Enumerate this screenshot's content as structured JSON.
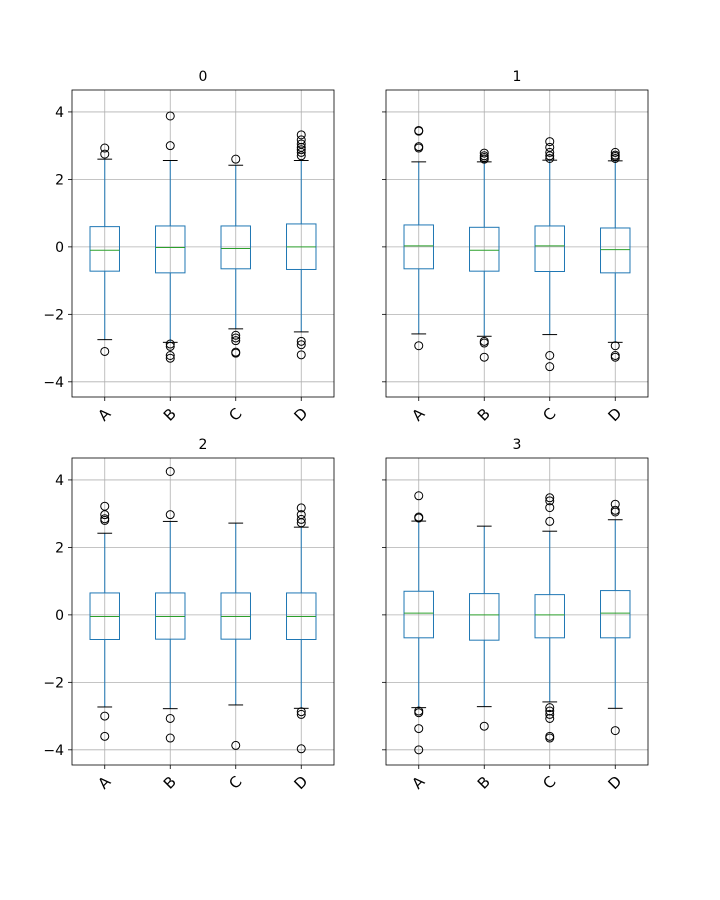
{
  "chart_data": [
    {
      "type": "box",
      "title": "0",
      "categories": [
        "A",
        "B",
        "C",
        "D"
      ],
      "ylim": [
        -4.45,
        4.65
      ],
      "yticks": [
        -4,
        -2,
        0,
        2,
        4
      ],
      "ytick_labels": [
        "−4",
        "−2",
        "0",
        "2",
        "4"
      ],
      "grid": true,
      "boxes": [
        {
          "whislo": -2.75,
          "q1": -0.72,
          "med": -0.1,
          "q3": 0.6,
          "whishi": 2.6,
          "fliers": [
            -3.1,
            2.75,
            2.93
          ]
        },
        {
          "whislo": -2.83,
          "q1": -0.77,
          "med": -0.02,
          "q3": 0.62,
          "whishi": 2.56,
          "fliers": [
            -2.88,
            -2.95,
            -3.22,
            -3.3,
            3.0,
            3.88
          ]
        },
        {
          "whislo": -2.43,
          "q1": -0.65,
          "med": -0.05,
          "q3": 0.62,
          "whishi": 2.42,
          "fliers": [
            -2.62,
            -2.7,
            -2.78,
            -3.12,
            -3.15,
            2.6
          ]
        },
        {
          "whislo": -2.52,
          "q1": -0.67,
          "med": 0.0,
          "q3": 0.68,
          "whishi": 2.56,
          "fliers": [
            -2.8,
            -2.9,
            -3.2,
            2.7,
            2.8,
            2.88,
            2.95,
            3.05,
            3.17,
            3.32
          ]
        }
      ]
    },
    {
      "type": "box",
      "title": "1",
      "categories": [
        "A",
        "B",
        "C",
        "D"
      ],
      "ylim": [
        -4.45,
        4.65
      ],
      "yticks": [
        -4,
        -2,
        0,
        2,
        4
      ],
      "ytick_labels": [],
      "grid": true,
      "boxes": [
        {
          "whislo": -2.58,
          "q1": -0.65,
          "med": 0.03,
          "q3": 0.65,
          "whishi": 2.52,
          "fliers": [
            -2.93,
            2.93,
            2.97,
            3.43,
            3.45
          ]
        },
        {
          "whislo": -2.65,
          "q1": -0.72,
          "med": -0.1,
          "q3": 0.58,
          "whishi": 2.52,
          "fliers": [
            -2.8,
            -2.85,
            -3.27,
            2.6,
            2.65,
            2.7,
            2.78
          ]
        },
        {
          "whislo": -2.6,
          "q1": -0.73,
          "med": 0.03,
          "q3": 0.62,
          "whishi": 2.57,
          "fliers": [
            -3.22,
            -3.55,
            2.62,
            2.7,
            2.8,
            2.95,
            3.12
          ]
        },
        {
          "whislo": -2.83,
          "q1": -0.77,
          "med": -0.08,
          "q3": 0.56,
          "whishi": 2.55,
          "fliers": [
            -2.93,
            -3.22,
            -3.27,
            2.62,
            2.68,
            2.72,
            2.8
          ]
        }
      ]
    },
    {
      "type": "box",
      "title": "2",
      "categories": [
        "A",
        "B",
        "C",
        "D"
      ],
      "ylim": [
        -4.45,
        4.65
      ],
      "yticks": [
        -4,
        -2,
        0,
        2,
        4
      ],
      "ytick_labels": [
        "−4",
        "−2",
        "0",
        "2",
        "4"
      ],
      "grid": true,
      "boxes": [
        {
          "whislo": -2.73,
          "q1": -0.73,
          "med": -0.05,
          "q3": 0.65,
          "whishi": 2.42,
          "fliers": [
            -3.0,
            -3.6,
            2.8,
            2.85,
            2.97,
            3.22
          ]
        },
        {
          "whislo": -2.78,
          "q1": -0.72,
          "med": -0.05,
          "q3": 0.65,
          "whishi": 2.77,
          "fliers": [
            -3.07,
            -3.65,
            2.97,
            4.25
          ]
        },
        {
          "whislo": -2.67,
          "q1": -0.72,
          "med": -0.05,
          "q3": 0.65,
          "whishi": 2.72,
          "fliers": [
            -3.87
          ]
        },
        {
          "whislo": -2.77,
          "q1": -0.73,
          "med": -0.05,
          "q3": 0.65,
          "whishi": 2.6,
          "fliers": [
            -2.87,
            -2.95,
            -3.97,
            2.73,
            2.83,
            2.97,
            3.17
          ]
        }
      ]
    },
    {
      "type": "box",
      "title": "3",
      "categories": [
        "A",
        "B",
        "C",
        "D"
      ],
      "ylim": [
        -4.45,
        4.65
      ],
      "yticks": [
        -4,
        -2,
        0,
        2,
        4
      ],
      "ytick_labels": [],
      "grid": true,
      "boxes": [
        {
          "whislo": -2.75,
          "q1": -0.68,
          "med": 0.05,
          "q3": 0.7,
          "whishi": 2.78,
          "fliers": [
            -2.85,
            -2.9,
            -3.37,
            -4.0,
            2.87,
            2.9,
            3.53
          ]
        },
        {
          "whislo": -2.72,
          "q1": -0.75,
          "med": 0.0,
          "q3": 0.63,
          "whishi": 2.63,
          "fliers": [
            -3.3
          ]
        },
        {
          "whislo": -2.58,
          "q1": -0.68,
          "med": 0.0,
          "q3": 0.6,
          "whishi": 2.48,
          "fliers": [
            -2.75,
            -2.85,
            -2.95,
            -3.07,
            -3.6,
            -3.65,
            2.77,
            3.18,
            3.38,
            3.47
          ]
        },
        {
          "whislo": -2.77,
          "q1": -0.68,
          "med": 0.05,
          "q3": 0.72,
          "whishi": 2.82,
          "fliers": [
            -3.43,
            3.05,
            3.1,
            3.28
          ]
        }
      ]
    }
  ],
  "colors": {
    "box": "#1f77b4",
    "median": "#2ca02c",
    "grid": "#b0b0b0",
    "frame": "#000000",
    "flier": "#000000"
  }
}
